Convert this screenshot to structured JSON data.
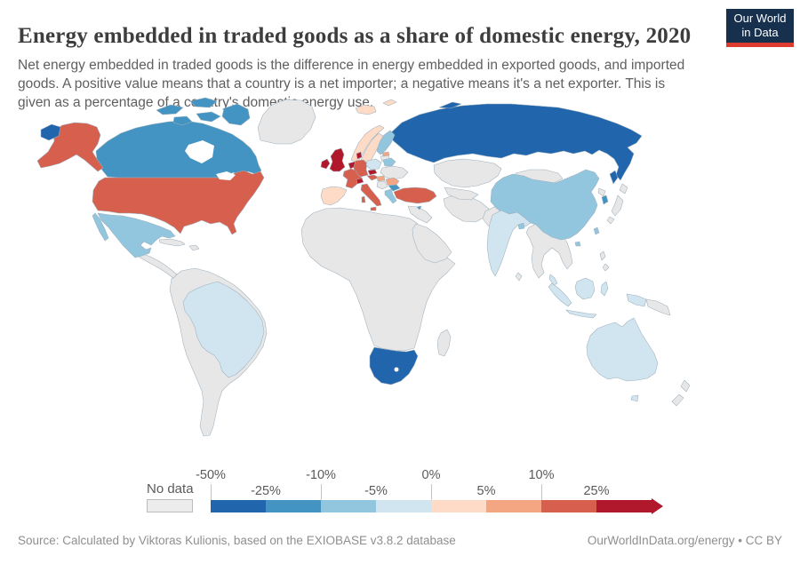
{
  "header": {
    "title": "Energy embedded in traded goods as a share of domestic energy, 2020",
    "subtitle": "Net energy embedded in traded goods is the difference in energy embedded in exported goods, and imported goods. A positive value means that a country is a net importer; a negative means it's a net exporter. This is given as a percentage of a country's domestic energy use.",
    "logo": {
      "line1": "Our World",
      "line2": "in Data",
      "bg": "#16304e",
      "accent": "#dc3b2e"
    }
  },
  "legend": {
    "no_data_label": "No data",
    "no_data_color": "#ececec",
    "bins": [
      {
        "range": "-50% to -25%",
        "color": "#2166ac"
      },
      {
        "range": "-25% to -10%",
        "color": "#4393c3"
      },
      {
        "range": "-10% to -5%",
        "color": "#92c5de"
      },
      {
        "range": "-5% to 0%",
        "color": "#d1e5f0"
      },
      {
        "range": "0% to 5%",
        "color": "#fddbc7"
      },
      {
        "range": "5% to 10%",
        "color": "#f4a582"
      },
      {
        "range": "10% to 25%",
        "color": "#d6604d"
      },
      {
        "range": "25% and above",
        "color": "#b2182b"
      }
    ],
    "ticks": [
      {
        "label": "-50%",
        "row": "top",
        "offset": 0
      },
      {
        "label": "-25%",
        "row": "bottom",
        "offset": 62
      },
      {
        "label": "-10%",
        "row": "top",
        "offset": 124
      },
      {
        "label": "-5%",
        "row": "bottom",
        "offset": 186
      },
      {
        "label": "0%",
        "row": "top",
        "offset": 248
      },
      {
        "label": "5%",
        "row": "bottom",
        "offset": 310
      },
      {
        "label": "10%",
        "row": "top",
        "offset": 372
      },
      {
        "label": "25%",
        "row": "bottom",
        "offset": 434
      }
    ]
  },
  "footer": {
    "source": "Source: Calculated by Viktoras Kulionis, based on the EXIOBASE v3.8.2 database",
    "credit": "OurWorldInData.org/energy • CC BY"
  },
  "chart_data": {
    "type": "choropleth",
    "title": "Energy embedded in traded goods as a share of domestic energy, 2020",
    "unit": "% of domestic energy use",
    "year": 2020,
    "legend_bins": [
      "-50% to -25%",
      "-25% to -10%",
      "-10% to -5%",
      "-5% to 0%",
      "0% to 5%",
      "5% to 10%",
      "10% to 25%",
      "25% and above",
      "No data"
    ],
    "entities": [
      {
        "name": "Russia",
        "bucket": "-50% to -25%"
      },
      {
        "name": "South Africa",
        "bucket": "-50% to -25%"
      },
      {
        "name": "Canada",
        "bucket": "-25% to -10%"
      },
      {
        "name": "Bulgaria",
        "bucket": "-25% to -10%"
      },
      {
        "name": "South Korea",
        "bucket": "-25% to -10%"
      },
      {
        "name": "Mexico",
        "bucket": "-10% to -5%"
      },
      {
        "name": "China",
        "bucket": "-10% to -5%"
      },
      {
        "name": "Finland",
        "bucket": "-10% to -5%"
      },
      {
        "name": "Belarus",
        "bucket": "-10% to -5%"
      },
      {
        "name": "Greece",
        "bucket": "-10% to -5%"
      },
      {
        "name": "Taiwan",
        "bucket": "-10% to -5%"
      },
      {
        "name": "Bangladesh",
        "bucket": "-10% to -5%"
      },
      {
        "name": "Brazil",
        "bucket": "-5% to 0%"
      },
      {
        "name": "India",
        "bucket": "-5% to 0%"
      },
      {
        "name": "Australia",
        "bucket": "-5% to 0%"
      },
      {
        "name": "Indonesia",
        "bucket": "-5% to 0%"
      },
      {
        "name": "Malaysia",
        "bucket": "-5% to 0%"
      },
      {
        "name": "Poland",
        "bucket": "-5% to 0%"
      },
      {
        "name": "Norway",
        "bucket": "0% to 5%"
      },
      {
        "name": "Sweden",
        "bucket": "0% to 5%"
      },
      {
        "name": "Iceland",
        "bucket": "0% to 5%"
      },
      {
        "name": "Spain",
        "bucket": "0% to 5%"
      },
      {
        "name": "Portugal",
        "bucket": "0% to 5%"
      },
      {
        "name": "Hungary",
        "bucket": "5% to 10%"
      },
      {
        "name": "Romania",
        "bucket": "5% to 10%"
      },
      {
        "name": "Estonia",
        "bucket": "5% to 10%"
      },
      {
        "name": "United States",
        "bucket": "10% to 25%"
      },
      {
        "name": "France",
        "bucket": "10% to 25%"
      },
      {
        "name": "Germany",
        "bucket": "10% to 25%"
      },
      {
        "name": "Italy",
        "bucket": "10% to 25%"
      },
      {
        "name": "Austria",
        "bucket": "10% to 25%"
      },
      {
        "name": "Turkey",
        "bucket": "10% to 25%"
      },
      {
        "name": "United Kingdom",
        "bucket": "25% and above"
      },
      {
        "name": "Ireland",
        "bucket": "25% and above"
      },
      {
        "name": "Netherlands",
        "bucket": "25% and above"
      },
      {
        "name": "Belgium",
        "bucket": "25% and above"
      },
      {
        "name": "Switzerland",
        "bucket": "25% and above"
      },
      {
        "name": "Denmark",
        "bucket": "25% and above"
      },
      {
        "name": "Czechia",
        "bucket": "25% and above"
      }
    ],
    "no_data_entities": [
      "Greenland",
      "Most of Africa",
      "Middle East",
      "Kazakhstan",
      "Central Asia",
      "Mongolia",
      "Japan",
      "Ukraine",
      "New Zealand",
      "Most of South America",
      "Central America",
      "Caribbean",
      "Mainland Southeast Asia",
      "Philippines",
      "Papua New Guinea",
      "Madagascar"
    ]
  },
  "map": {
    "no_data_fill": "#e7e7e7",
    "regions": [
      {
        "id": "russia",
        "name": "Russia",
        "bucket": "-50% to -25%"
      },
      {
        "id": "south-africa",
        "name": "South Africa",
        "bucket": "-50% to -25%"
      },
      {
        "id": "canada",
        "name": "Canada",
        "bucket": "-25% to -10%"
      },
      {
        "id": "bulgaria",
        "name": "Bulgaria",
        "bucket": "-25% to -10%"
      },
      {
        "id": "south-korea",
        "name": "South Korea",
        "bucket": "-25% to -10%"
      },
      {
        "id": "cyprus",
        "name": "Cyprus",
        "bucket": "-25% to -10%"
      },
      {
        "id": "mexico",
        "name": "Mexico",
        "bucket": "-10% to -5%"
      },
      {
        "id": "china",
        "name": "China",
        "bucket": "-10% to -5%"
      },
      {
        "id": "finland",
        "name": "Finland",
        "bucket": "-10% to -5%"
      },
      {
        "id": "belarus",
        "name": "Belarus",
        "bucket": "-10% to -5%"
      },
      {
        "id": "greece",
        "name": "Greece",
        "bucket": "-10% to -5%"
      },
      {
        "id": "taiwan",
        "name": "Taiwan",
        "bucket": "-10% to -5%"
      },
      {
        "id": "bangladesh",
        "name": "Bangladesh",
        "bucket": "-10% to -5%"
      },
      {
        "id": "brazil",
        "name": "Brazil",
        "bucket": "-5% to 0%"
      },
      {
        "id": "india",
        "name": "India",
        "bucket": "-5% to 0%"
      },
      {
        "id": "australia",
        "name": "Australia",
        "bucket": "-5% to 0%"
      },
      {
        "id": "indonesia",
        "name": "Indonesia",
        "bucket": "-5% to 0%"
      },
      {
        "id": "malaysia",
        "name": "Malaysia",
        "bucket": "-5% to 0%"
      },
      {
        "id": "poland",
        "name": "Poland",
        "bucket": "-5% to 0%"
      },
      {
        "id": "norway",
        "name": "Norway",
        "bucket": "0% to 5%"
      },
      {
        "id": "svalbard",
        "name": "Svalbard",
        "bucket": "0% to 5%"
      },
      {
        "id": "sweden",
        "name": "Sweden",
        "bucket": "0% to 5%"
      },
      {
        "id": "iceland",
        "name": "Iceland",
        "bucket": "0% to 5%"
      },
      {
        "id": "iberia",
        "name": "Spain and Portugal",
        "bucket": "0% to 5%"
      },
      {
        "id": "hungary",
        "name": "Hungary",
        "bucket": "5% to 10%"
      },
      {
        "id": "romania",
        "name": "Romania",
        "bucket": "5% to 10%"
      },
      {
        "id": "estonia",
        "name": "Estonia",
        "bucket": "5% to 10%"
      },
      {
        "id": "usa",
        "name": "United States",
        "bucket": "10% to 25%"
      },
      {
        "id": "france",
        "name": "France",
        "bucket": "10% to 25%"
      },
      {
        "id": "germany",
        "name": "Germany",
        "bucket": "10% to 25%"
      },
      {
        "id": "italy",
        "name": "Italy",
        "bucket": "10% to 25%"
      },
      {
        "id": "austria",
        "name": "Austria",
        "bucket": "10% to 25%"
      },
      {
        "id": "turkey",
        "name": "Turkey",
        "bucket": "10% to 25%"
      },
      {
        "id": "uk",
        "name": "United Kingdom",
        "bucket": "25% and above"
      },
      {
        "id": "ireland",
        "name": "Ireland",
        "bucket": "25% and above"
      },
      {
        "id": "benelux",
        "name": "Netherlands and Belgium",
        "bucket": "25% and above"
      },
      {
        "id": "switzerland",
        "name": "Switzerland",
        "bucket": "25% and above"
      },
      {
        "id": "denmark",
        "name": "Denmark",
        "bucket": "25% and above"
      },
      {
        "id": "czechia",
        "name": "Czechia",
        "bucket": "25% and above"
      },
      {
        "id": "greenland",
        "name": "Greenland",
        "bucket": null
      },
      {
        "id": "central-america",
        "name": "Central America",
        "bucket": null
      },
      {
        "id": "cuba",
        "name": "Cuba",
        "bucket": null
      },
      {
        "id": "hispaniola",
        "name": "Hispaniola",
        "bucket": null
      },
      {
        "id": "south-america",
        "name": "Rest of South America",
        "bucket": null
      },
      {
        "id": "africa",
        "name": "Rest of Africa",
        "bucket": null
      },
      {
        "id": "madagascar",
        "name": "Madagascar",
        "bucket": null
      },
      {
        "id": "levant",
        "name": "Levant and Iraq",
        "bucket": null
      },
      {
        "id": "arabia",
        "name": "Arabian Peninsula",
        "bucket": null
      },
      {
        "id": "iran",
        "name": "Iran",
        "bucket": null
      },
      {
        "id": "afpak",
        "name": "Afghanistan and Pakistan",
        "bucket": null
      },
      {
        "id": "kazakhstan",
        "name": "Kazakhstan",
        "bucket": null
      },
      {
        "id": "central-asia",
        "name": "Central Asia",
        "bucket": null
      },
      {
        "id": "mongolia",
        "name": "Mongolia",
        "bucket": null
      },
      {
        "id": "ukraine",
        "name": "Ukraine",
        "bucket": null
      },
      {
        "id": "balkans",
        "name": "Western Balkans",
        "bucket": null
      },
      {
        "id": "baltics-south",
        "name": "Latvia and Lithuania",
        "bucket": null
      },
      {
        "id": "japan",
        "name": "Japan",
        "bucket": null
      },
      {
        "id": "north-korea",
        "name": "North Korea",
        "bucket": null
      },
      {
        "id": "indochina",
        "name": "Mainland Southeast Asia",
        "bucket": null
      },
      {
        "id": "sri-lanka",
        "name": "Sri Lanka",
        "bucket": null
      },
      {
        "id": "philippines",
        "name": "Philippines",
        "bucket": null
      },
      {
        "id": "png",
        "name": "Papua New Guinea",
        "bucket": null
      },
      {
        "id": "new-zealand",
        "name": "New Zealand",
        "bucket": null
      }
    ]
  }
}
